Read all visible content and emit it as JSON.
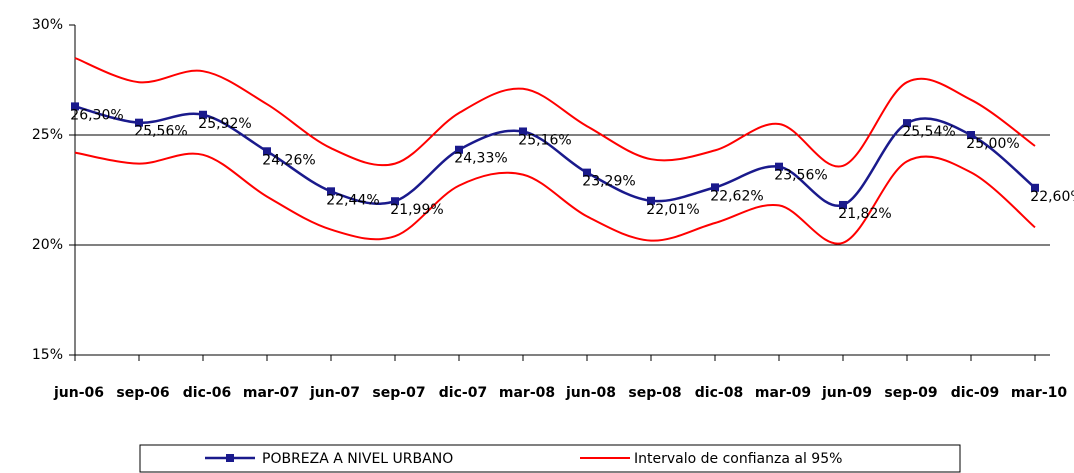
{
  "chart_data": {
    "type": "line",
    "categories": [
      "jun-06",
      "sep-06",
      "dic-06",
      "mar-07",
      "jun-07",
      "sep-07",
      "dic-07",
      "mar-08",
      "jun-08",
      "sep-08",
      "dic-08",
      "mar-09",
      "jun-09",
      "sep-09",
      "dic-09",
      "mar-10"
    ],
    "series": [
      {
        "name": "POBREZA A NIVEL URBANO",
        "color": "#1a1a8c",
        "marker": "square",
        "values": [
          26.3,
          25.56,
          25.92,
          24.26,
          22.44,
          21.99,
          24.33,
          25.16,
          23.29,
          22.01,
          22.62,
          23.56,
          21.82,
          25.54,
          25.0,
          22.6
        ],
        "value_labels": [
          "26,30%",
          "25,56%",
          "25,92%",
          "24,26%",
          "22,44%",
          "21,99%",
          "24,33%",
          "25,16%",
          "23,29%",
          "22,01%",
          "22,62%",
          "23,56%",
          "21,82%",
          "25,54%",
          "25,00%",
          "22,60%"
        ]
      }
    ],
    "band": {
      "name": "Intervalo de confianza al 95%",
      "color": "#ff0000",
      "upper": [
        28.5,
        27.4,
        27.9,
        26.4,
        24.4,
        23.7,
        26.0,
        27.1,
        25.4,
        23.9,
        24.3,
        25.5,
        23.6,
        27.4,
        26.6,
        24.5
      ],
      "lower": [
        24.2,
        23.7,
        24.1,
        22.2,
        20.7,
        20.4,
        22.7,
        23.2,
        21.3,
        20.2,
        21.0,
        21.8,
        20.1,
        23.8,
        23.3,
        20.8
      ]
    },
    "ylim": [
      15,
      30
    ],
    "yticks": [
      {
        "value": 15,
        "label": "15%"
      },
      {
        "value": 20,
        "label": "20%"
      },
      {
        "value": 25,
        "label": "25%"
      },
      {
        "value": 30,
        "label": "30%"
      }
    ],
    "grid": true,
    "smooth": true,
    "legend": "bottom"
  }
}
